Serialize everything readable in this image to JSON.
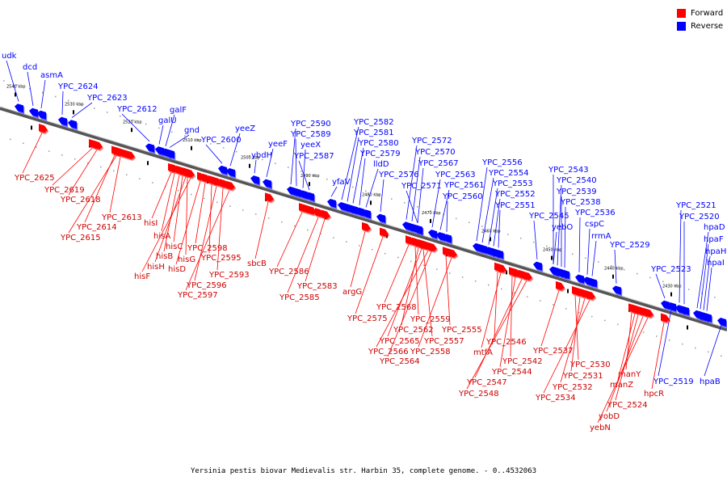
{
  "legend": {
    "forward_label": "Forward",
    "reverse_label": "Reverse",
    "forward_color": "#ff0000",
    "reverse_color": "#0000ff"
  },
  "caption": "Yersinia pestis biovar Medievalis str. Harbin 35, complete genome. - 0..4532063",
  "scale_labels": [
    "2540 kbp",
    "2530 kbp",
    "2520 kbp",
    "2510 kbp",
    "2500 kbp",
    "2490 kbp",
    "2480 kbp",
    "2470 kbp",
    "2460 kbp",
    "2450 kbp",
    "2440 kbp",
    "2430 kbp"
  ],
  "reverse_genes": [
    "udk",
    "dcd",
    "asmA",
    "YPC_2624",
    "YPC_2623",
    "YPC_2612",
    "galF",
    "galU",
    "gnd",
    "YPC_2600",
    "yeeZ",
    "ybdH",
    "yeeF",
    "YPC_2590",
    "YPC_2589",
    "yeeX",
    "YPC_2587",
    "yfaV",
    "YPC_2582",
    "YPC_2581",
    "YPC_2580",
    "YPC_2579",
    "lldD",
    "YPC_2576",
    "YPC_2572",
    "YPC_2570",
    "YPC_2567",
    "YPC_2571",
    "YPC_2563",
    "YPC_2561",
    "YPC_2560",
    "YPC_2556",
    "YPC_2554",
    "YPC_2553",
    "YPC_2552",
    "YPC_2551",
    "YPC_2545",
    "YPC_2543",
    "YPC_2540",
    "YPC_2539",
    "YPC_2538",
    "yebO",
    "YPC_2536",
    "cspC",
    "rrmA",
    "YPC_2529",
    "YPC_2523",
    "YPC_2521",
    "YPC_2520",
    "hpaD",
    "hpaF",
    "hpaH",
    "hpaI",
    "YPC_2519",
    "hpaB"
  ],
  "forward_genes": [
    "YPC_2625",
    "YPC_2619",
    "YPC_2618",
    "YPC_2614",
    "YPC_2615",
    "YPC_2613",
    "hisI",
    "hisA",
    "hisB",
    "hisC",
    "hisG",
    "hisH",
    "hisF",
    "hisD",
    "YPC_2598",
    "YPC_2595",
    "YPC_2596",
    "YPC_2593",
    "YPC_2597",
    "sbcB",
    "YPC_2586",
    "YPC_2583",
    "YPC_2585",
    "argG",
    "YPC_2575",
    "YPC_2568",
    "YPC_2559",
    "YPC_2562",
    "YPC_2555",
    "YPC_2565",
    "YPC_2557",
    "YPC_2566",
    "YPC_2558",
    "YPC_2564",
    "YPC_2546",
    "mtfA",
    "YPC_2542",
    "YPC_2544",
    "YPC_2547",
    "YPC_2548",
    "YPC_2537",
    "YPC_2530",
    "YPC_2531",
    "YPC_2532",
    "YPC_2534",
    "manY",
    "manZ",
    "YPC_2524",
    "hpcR",
    "yobD",
    "yebN"
  ]
}
